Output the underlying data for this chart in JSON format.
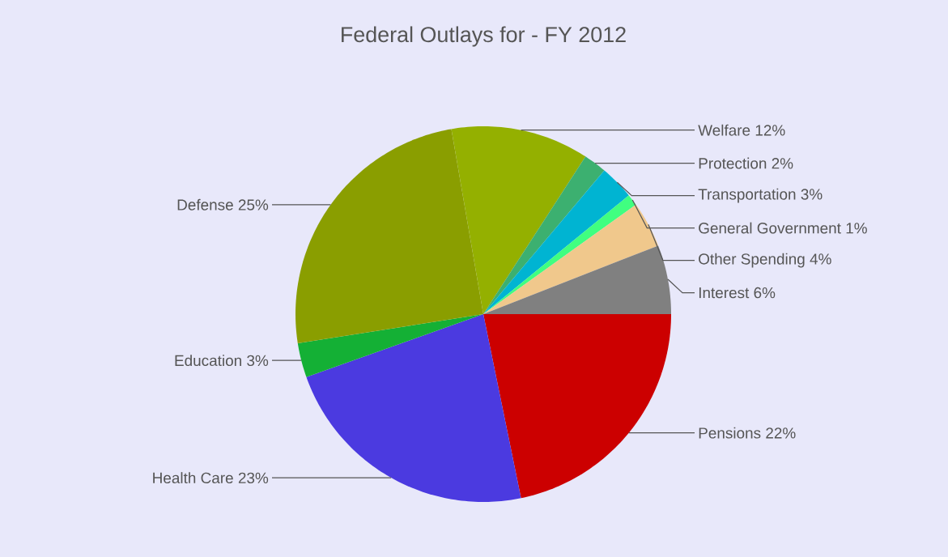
{
  "chart_data": {
    "type": "pie",
    "title": "Federal Outlays for  - FY 2012",
    "categories": [
      "Pensions",
      "Health Care",
      "Education",
      "Defense",
      "Welfare",
      "Protection",
      "Transportation",
      "General Government",
      "Other Spending",
      "Interest"
    ],
    "values": [
      22,
      23,
      3,
      25,
      12,
      2,
      3,
      1,
      4,
      6
    ],
    "value_labels": [
      "22%",
      "23%",
      "3%",
      "25%",
      "12%",
      "2%",
      "3%",
      "1%",
      "4%",
      "6%"
    ],
    "colors": [
      "#cc0000",
      "#4b3ae0",
      "#14b035",
      "#8a9e00",
      "#94b000",
      "#3cb070",
      "#00b4d2",
      "#40ff80",
      "#f0c88c",
      "#808080"
    ]
  }
}
